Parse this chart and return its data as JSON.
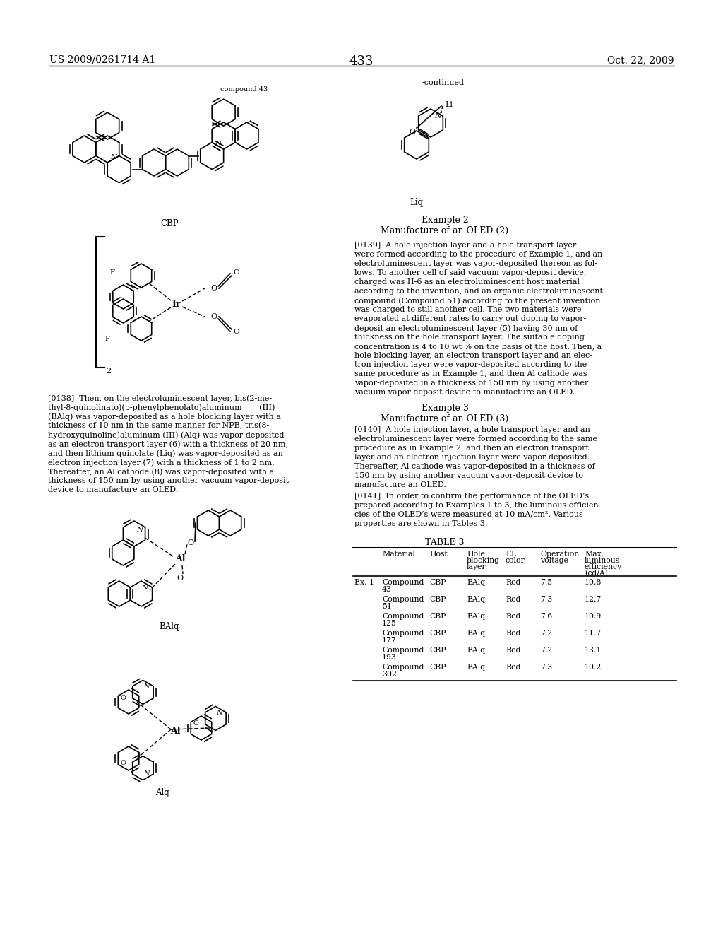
{
  "patent_number": "US 2009/0261714 A1",
  "date": "Oct. 22, 2009",
  "page_number": "433",
  "continued_label": "-continued",
  "compound43_label": "compound 43",
  "cbp_label": "CBP",
  "liq_label": "Liq",
  "balq_label": "BAlq",
  "alq_label": "Alq",
  "example2_title": "Example 2",
  "example2_subtitle": "Manufacture of an OLED (2)",
  "example3_title": "Example 3",
  "example3_subtitle": "Manufacture of an OLED (3)",
  "table_title": "TABLE 3",
  "table_rows": [
    [
      "Ex. 1",
      "Compound 43",
      "CBP",
      "BAlq",
      "Red",
      "7.5",
      "10.8"
    ],
    [
      "",
      "Compound 51",
      "CBP",
      "BAlq",
      "Red",
      "7.3",
      "12.7"
    ],
    [
      "",
      "Compound 125",
      "CBP",
      "BAlq",
      "Red",
      "7.6",
      "10.9"
    ],
    [
      "",
      "Compound 177",
      "CBP",
      "BAlq",
      "Red",
      "7.2",
      "11.7"
    ],
    [
      "",
      "Compound 193",
      "CBP",
      "BAlq",
      "Red",
      "7.2",
      "13.1"
    ],
    [
      "",
      "Compound 302",
      "CBP",
      "BAlq",
      "Red",
      "7.3",
      "10.2"
    ]
  ],
  "bg_color": "#ffffff",
  "text_color": "#000000"
}
